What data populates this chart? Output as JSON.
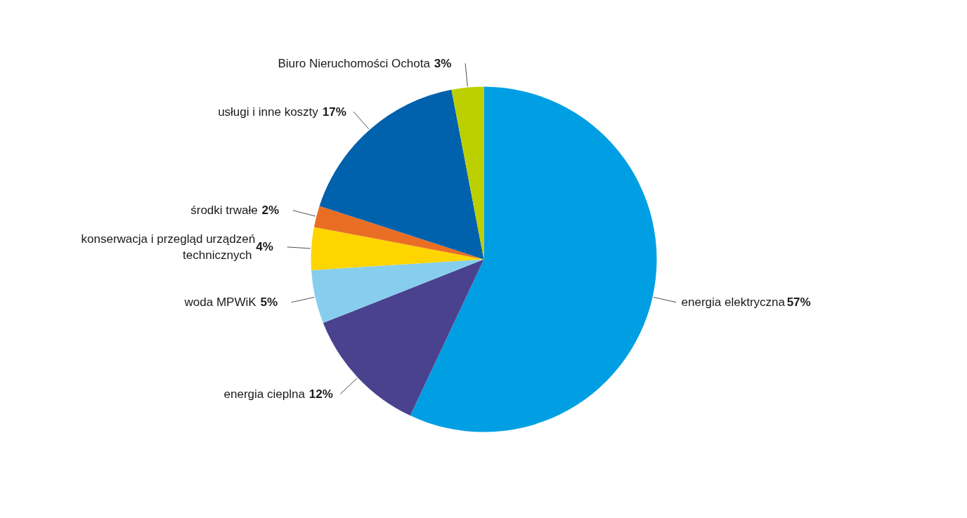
{
  "chart_data": {
    "type": "pie",
    "categories": [
      "energia elektryczna",
      "energia cieplna",
      "woda MPWiK",
      "konserwacja i przegląd urządzeń technicznych",
      "środki trwałe",
      "usługi i inne koszty",
      "Biuro Nieruchomości Ochota"
    ],
    "values": [
      57,
      12,
      5,
      4,
      2,
      17,
      3
    ],
    "value_labels": [
      "57%",
      "12%",
      "5%",
      "4%",
      "2%",
      "17%",
      "3%"
    ],
    "colors": [
      "#009fe3",
      "#4a428f",
      "#87ceee",
      "#ffd500",
      "#e96e24",
      "#0061ad",
      "#bccf00"
    ]
  }
}
